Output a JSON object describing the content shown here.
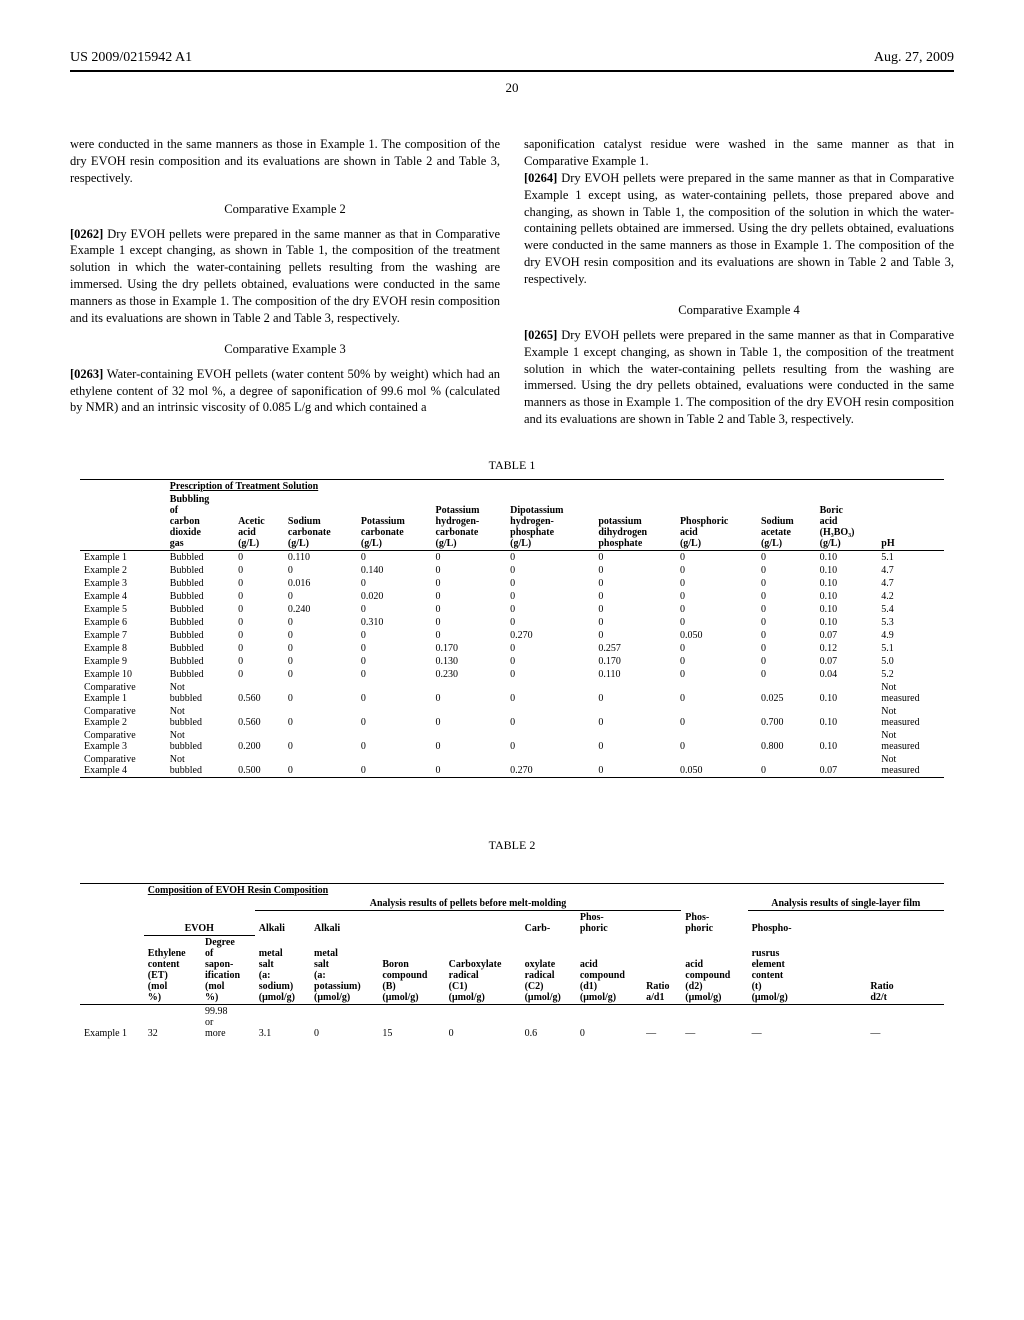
{
  "header": {
    "patent_no": "US 2009/0215942 A1",
    "date": "Aug. 27, 2009",
    "page_num": "20"
  },
  "col_left": {
    "p1": "were conducted in the same manners as those in Example 1. The composition of the dry EVOH resin composition and its evaluations are shown in Table 2 and Table 3, respectively.",
    "h2": "Comparative Example 2",
    "p2_num": "[0262]",
    "p2": "   Dry EVOH pellets were prepared in the same manner as that in Comparative Example 1 except changing, as shown in Table 1, the composition of the treatment solution in which the water-containing pellets resulting from the washing are immersed. Using the dry pellets obtained, evaluations were conducted in the same manners as those in Example 1. The composition of the dry EVOH resin composition and its evaluations are shown in Table 2 and Table 3, respectively.",
    "h3": "Comparative Example 3",
    "p3_num": "[0263]",
    "p3": "   Water-containing EVOH pellets (water content 50% by weight) which had an ethylene content of 32 mol %, a degree of saponification of 99.6 mol % (calculated by NMR) and an intrinsic viscosity of 0.085 L/g and which contained a"
  },
  "col_right": {
    "p1": "saponification catalyst residue were washed in the same manner as that in Comparative Example 1.",
    "p2_num": "[0264]",
    "p2": "   Dry EVOH pellets were prepared in the same manner as that in Comparative Example 1 except using, as water-containing pellets, those prepared above and changing, as shown in Table 1, the composition of the solution in which the water-containing pellets obtained are immersed. Using the dry pellets obtained, evaluations were conducted in the same manners as those in Example 1. The composition of the dry EVOH resin composition and its evaluations are shown in Table 2 and Table 3, respectively.",
    "h4": "Comparative Example 4",
    "p3_num": "[0265]",
    "p3": "   Dry EVOH pellets were prepared in the same manner as that in Comparative Example 1 except changing, as shown in Table 1, the composition of the treatment solution in which the water-containing pellets resulting from the washing are immersed. Using the dry pellets obtained, evaluations were conducted in the same manners as those in Example 1. The composition of the dry EVOH resin composition and its evaluations are shown in Table 2 and Table 3, respectively."
  },
  "table1": {
    "title": "TABLE 1",
    "span_header": "Prescription of Treatment Solution",
    "cols": [
      "",
      "Bubbling of carbon dioxide gas",
      "Acetic acid (g/L)",
      "Sodium carbonate (g/L)",
      "Potassium carbonate (g/L)",
      "Potassium hydrogen- carbonate (g/L)",
      "Dipotassium hydrogen- phosphate (g/L)",
      "potassium dihydrogen phosphate",
      "Phosphoric acid (g/L)",
      "Sodium acetate (g/L)",
      "Boric acid (H₃BO₃) (g/L)",
      "pH"
    ],
    "rows": [
      [
        "Example 1",
        "Bubbled",
        "0",
        "0.110",
        "0",
        "0",
        "0",
        "0",
        "0",
        "0",
        "0.10",
        "5.1"
      ],
      [
        "Example 2",
        "Bubbled",
        "0",
        "0",
        "0.140",
        "0",
        "0",
        "0",
        "0",
        "0",
        "0.10",
        "4.7"
      ],
      [
        "Example 3",
        "Bubbled",
        "0",
        "0.016",
        "0",
        "0",
        "0",
        "0",
        "0",
        "0",
        "0.10",
        "4.7"
      ],
      [
        "Example 4",
        "Bubbled",
        "0",
        "0",
        "0.020",
        "0",
        "0",
        "0",
        "0",
        "0",
        "0.10",
        "4.2"
      ],
      [
        "Example 5",
        "Bubbled",
        "0",
        "0.240",
        "0",
        "0",
        "0",
        "0",
        "0",
        "0",
        "0.10",
        "5.4"
      ],
      [
        "Example 6",
        "Bubbled",
        "0",
        "0",
        "0.310",
        "0",
        "0",
        "0",
        "0",
        "0",
        "0.10",
        "5.3"
      ],
      [
        "Example 7",
        "Bubbled",
        "0",
        "0",
        "0",
        "0",
        "0.270",
        "0",
        "0.050",
        "0",
        "0.07",
        "4.9"
      ],
      [
        "Example 8",
        "Bubbled",
        "0",
        "0",
        "0",
        "0.170",
        "0",
        "0.257",
        "0",
        "0",
        "0.12",
        "5.1"
      ],
      [
        "Example 9",
        "Bubbled",
        "0",
        "0",
        "0",
        "0.130",
        "0",
        "0.170",
        "0",
        "0",
        "0.07",
        "5.0"
      ],
      [
        "Example 10",
        "Bubbled",
        "0",
        "0",
        "0",
        "0.230",
        "0",
        "0.110",
        "0",
        "0",
        "0.04",
        "5.2"
      ],
      [
        "Comparative Example 1",
        "Not bubbled",
        "0.560",
        "0",
        "0",
        "0",
        "0",
        "0",
        "0",
        "0.025",
        "0.10",
        "Not measured"
      ],
      [
        "Comparative Example 2",
        "Not bubbled",
        "0.560",
        "0",
        "0",
        "0",
        "0",
        "0",
        "0",
        "0.700",
        "0.10",
        "Not measured"
      ],
      [
        "Comparative Example 3",
        "Not bubbled",
        "0.200",
        "0",
        "0",
        "0",
        "0",
        "0",
        "0",
        "0.800",
        "0.10",
        "Not measured"
      ],
      [
        "Comparative Example 4",
        "Not bubbled",
        "0.500",
        "0",
        "0",
        "0",
        "0.270",
        "0",
        "0.050",
        "0",
        "0.07",
        "Not measured"
      ]
    ]
  },
  "table2": {
    "title": "TABLE 2",
    "span_header": "Composition of EVOH Resin Composition",
    "sub_left": "Analysis results of pellets before melt-molding",
    "sub_right": "Analysis results of single-layer film",
    "group_evoh": "EVOH",
    "group_alk1": "Alkali",
    "group_alk2": "Alkali",
    "group_carb": "Carb-",
    "group_phos1": "Phos- phoric",
    "group_phos2": "Phos- phoric",
    "group_phospho": "Phospho-",
    "cols": [
      "",
      "Ethylene content (ET) (mol %)",
      "Degree of sapon- ification (mol %)",
      "metal salt (a: sodium) (μmol/g)",
      "metal salt (a: potassium) (μmol/g)",
      "Boron compound (B) (μmol/g)",
      "Carboxylate radical (C1) (μmol/g)",
      "oxylate radical (C2) (μmol/g)",
      "acid compound (d1) (μmol/g)",
      "Ratio a/d1",
      "acid compound (d2) (μmol/g)",
      "rusrus element content (t) (μmol/g)",
      "Ratio d2/t"
    ],
    "rows": [
      [
        "Example 1",
        "32",
        "99.98 or more",
        "3.1",
        "0",
        "15",
        "0",
        "0.6",
        "0",
        "—",
        "—",
        "—",
        "—"
      ]
    ]
  }
}
